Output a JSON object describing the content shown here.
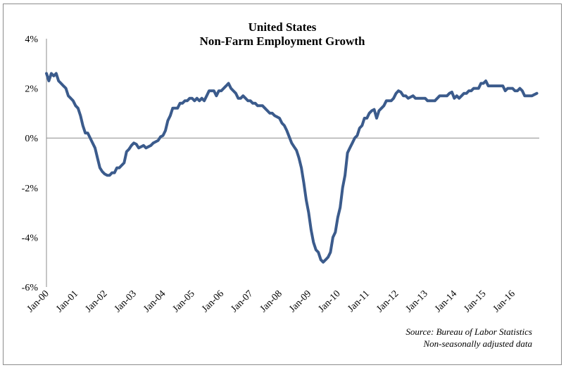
{
  "chart_data": {
    "type": "line",
    "title_lines": [
      "United States",
      "Non-Farm Employment Growth"
    ],
    "xlabel": "",
    "ylabel": "",
    "ylim": [
      -6,
      4
    ],
    "yticks": [
      4,
      2,
      0,
      -2,
      -4,
      -6
    ],
    "ytick_labels": [
      "4%",
      "2%",
      "0%",
      "-2%",
      "-4%",
      "-6%"
    ],
    "xlim": [
      "2000-01",
      "2016-12"
    ],
    "xticks": [
      "2000-01",
      "2001-01",
      "2002-01",
      "2003-01",
      "2004-01",
      "2005-01",
      "2006-01",
      "2007-01",
      "2008-01",
      "2009-01",
      "2010-01",
      "2011-01",
      "2012-01",
      "2013-01",
      "2014-01",
      "2015-01",
      "2016-01"
    ],
    "xtick_labels": [
      "Jan-00",
      "Jan-01",
      "Jan-02",
      "Jan-03",
      "Jan-04",
      "Jan-05",
      "Jan-06",
      "Jan-07",
      "Jan-08",
      "Jan-09",
      "Jan-10",
      "Jan-11",
      "Jan-12",
      "Jan-13",
      "Jan-14",
      "Jan-15",
      "Jan-16"
    ],
    "grid": false,
    "line_color": "#3b5b8c",
    "series": [
      {
        "values": [
          [
            "2000-01",
            2.6
          ],
          [
            "2000-02",
            2.3
          ],
          [
            "2000-03",
            2.6
          ],
          [
            "2000-04",
            2.5
          ],
          [
            "2000-05",
            2.6
          ],
          [
            "2000-06",
            2.3
          ],
          [
            "2000-07",
            2.2
          ],
          [
            "2000-08",
            2.1
          ],
          [
            "2000-09",
            2.0
          ],
          [
            "2000-10",
            1.7
          ],
          [
            "2000-11",
            1.6
          ],
          [
            "2000-12",
            1.5
          ],
          [
            "2001-01",
            1.3
          ],
          [
            "2001-02",
            1.2
          ],
          [
            "2001-03",
            0.9
          ],
          [
            "2001-04",
            0.5
          ],
          [
            "2001-05",
            0.2
          ],
          [
            "2001-06",
            0.2
          ],
          [
            "2001-07",
            0.0
          ],
          [
            "2001-08",
            -0.2
          ],
          [
            "2001-09",
            -0.4
          ],
          [
            "2001-10",
            -0.8
          ],
          [
            "2001-11",
            -1.2
          ],
          [
            "2001-12",
            -1.35
          ],
          [
            "2002-01",
            -1.45
          ],
          [
            "2002-02",
            -1.5
          ],
          [
            "2002-03",
            -1.5
          ],
          [
            "2002-04",
            -1.4
          ],
          [
            "2002-05",
            -1.4
          ],
          [
            "2002-06",
            -1.2
          ],
          [
            "2002-07",
            -1.2
          ],
          [
            "2002-08",
            -1.1
          ],
          [
            "2002-09",
            -1.0
          ],
          [
            "2002-10",
            -0.55
          ],
          [
            "2002-11",
            -0.45
          ],
          [
            "2002-12",
            -0.3
          ],
          [
            "2003-01",
            -0.2
          ],
          [
            "2003-02",
            -0.25
          ],
          [
            "2003-03",
            -0.4
          ],
          [
            "2003-04",
            -0.35
          ],
          [
            "2003-05",
            -0.3
          ],
          [
            "2003-06",
            -0.4
          ],
          [
            "2003-07",
            -0.35
          ],
          [
            "2003-08",
            -0.3
          ],
          [
            "2003-09",
            -0.2
          ],
          [
            "2003-10",
            -0.15
          ],
          [
            "2003-11",
            -0.1
          ],
          [
            "2003-12",
            0.05
          ],
          [
            "2004-01",
            0.1
          ],
          [
            "2004-02",
            0.3
          ],
          [
            "2004-03",
            0.7
          ],
          [
            "2004-04",
            0.9
          ],
          [
            "2004-05",
            1.2
          ],
          [
            "2004-06",
            1.2
          ],
          [
            "2004-07",
            1.2
          ],
          [
            "2004-08",
            1.4
          ],
          [
            "2004-09",
            1.4
          ],
          [
            "2004-10",
            1.5
          ],
          [
            "2004-11",
            1.5
          ],
          [
            "2004-12",
            1.6
          ],
          [
            "2005-01",
            1.6
          ],
          [
            "2005-02",
            1.5
          ],
          [
            "2005-03",
            1.6
          ],
          [
            "2005-04",
            1.5
          ],
          [
            "2005-05",
            1.6
          ],
          [
            "2005-06",
            1.5
          ],
          [
            "2005-07",
            1.7
          ],
          [
            "2005-08",
            1.9
          ],
          [
            "2005-09",
            1.9
          ],
          [
            "2005-10",
            1.9
          ],
          [
            "2005-11",
            1.7
          ],
          [
            "2005-12",
            1.9
          ],
          [
            "2006-01",
            1.9
          ],
          [
            "2006-02",
            2.0
          ],
          [
            "2006-03",
            2.1
          ],
          [
            "2006-04",
            2.2
          ],
          [
            "2006-05",
            2.0
          ],
          [
            "2006-06",
            1.9
          ],
          [
            "2006-07",
            1.8
          ],
          [
            "2006-08",
            1.6
          ],
          [
            "2006-09",
            1.6
          ],
          [
            "2006-10",
            1.7
          ],
          [
            "2006-11",
            1.6
          ],
          [
            "2006-12",
            1.5
          ],
          [
            "2007-01",
            1.5
          ],
          [
            "2007-02",
            1.4
          ],
          [
            "2007-03",
            1.4
          ],
          [
            "2007-04",
            1.3
          ],
          [
            "2007-05",
            1.3
          ],
          [
            "2007-06",
            1.3
          ],
          [
            "2007-07",
            1.2
          ],
          [
            "2007-08",
            1.1
          ],
          [
            "2007-09",
            1.0
          ],
          [
            "2007-10",
            1.0
          ],
          [
            "2007-11",
            0.9
          ],
          [
            "2007-12",
            0.85
          ],
          [
            "2008-01",
            0.8
          ],
          [
            "2008-02",
            0.6
          ],
          [
            "2008-03",
            0.5
          ],
          [
            "2008-04",
            0.3
          ],
          [
            "2008-05",
            0.05
          ],
          [
            "2008-06",
            -0.2
          ],
          [
            "2008-07",
            -0.35
          ],
          [
            "2008-08",
            -0.5
          ],
          [
            "2008-09",
            -0.8
          ],
          [
            "2008-10",
            -1.2
          ],
          [
            "2008-11",
            -1.8
          ],
          [
            "2008-12",
            -2.5
          ],
          [
            "2009-01",
            -3.0
          ],
          [
            "2009-02",
            -3.7
          ],
          [
            "2009-03",
            -4.2
          ],
          [
            "2009-04",
            -4.5
          ],
          [
            "2009-05",
            -4.6
          ],
          [
            "2009-06",
            -4.9
          ],
          [
            "2009-07",
            -5.0
          ],
          [
            "2009-08",
            -4.9
          ],
          [
            "2009-09",
            -4.8
          ],
          [
            "2009-10",
            -4.6
          ],
          [
            "2009-11",
            -4.0
          ],
          [
            "2009-12",
            -3.8
          ],
          [
            "2010-01",
            -3.2
          ],
          [
            "2010-02",
            -2.8
          ],
          [
            "2010-03",
            -2.0
          ],
          [
            "2010-04",
            -1.5
          ],
          [
            "2010-05",
            -0.6
          ],
          [
            "2010-06",
            -0.4
          ],
          [
            "2010-07",
            -0.2
          ],
          [
            "2010-08",
            0.0
          ],
          [
            "2010-09",
            0.1
          ],
          [
            "2010-10",
            0.4
          ],
          [
            "2010-11",
            0.5
          ],
          [
            "2010-12",
            0.8
          ],
          [
            "2011-01",
            0.8
          ],
          [
            "2011-02",
            1.0
          ],
          [
            "2011-03",
            1.1
          ],
          [
            "2011-04",
            1.15
          ],
          [
            "2011-05",
            0.8
          ],
          [
            "2011-06",
            1.1
          ],
          [
            "2011-07",
            1.2
          ],
          [
            "2011-08",
            1.3
          ],
          [
            "2011-09",
            1.5
          ],
          [
            "2011-10",
            1.5
          ],
          [
            "2011-11",
            1.5
          ],
          [
            "2011-12",
            1.6
          ],
          [
            "2012-01",
            1.8
          ],
          [
            "2012-02",
            1.9
          ],
          [
            "2012-03",
            1.85
          ],
          [
            "2012-04",
            1.7
          ],
          [
            "2012-05",
            1.7
          ],
          [
            "2012-06",
            1.6
          ],
          [
            "2012-07",
            1.65
          ],
          [
            "2012-08",
            1.7
          ],
          [
            "2012-09",
            1.6
          ],
          [
            "2012-10",
            1.6
          ],
          [
            "2012-11",
            1.6
          ],
          [
            "2012-12",
            1.6
          ],
          [
            "2013-01",
            1.6
          ],
          [
            "2013-02",
            1.5
          ],
          [
            "2013-03",
            1.5
          ],
          [
            "2013-04",
            1.5
          ],
          [
            "2013-05",
            1.5
          ],
          [
            "2013-06",
            1.6
          ],
          [
            "2013-07",
            1.7
          ],
          [
            "2013-08",
            1.7
          ],
          [
            "2013-09",
            1.7
          ],
          [
            "2013-10",
            1.7
          ],
          [
            "2013-11",
            1.8
          ],
          [
            "2013-12",
            1.85
          ],
          [
            "2014-01",
            1.6
          ],
          [
            "2014-02",
            1.7
          ],
          [
            "2014-03",
            1.6
          ],
          [
            "2014-04",
            1.7
          ],
          [
            "2014-05",
            1.8
          ],
          [
            "2014-06",
            1.8
          ],
          [
            "2014-07",
            1.9
          ],
          [
            "2014-08",
            1.9
          ],
          [
            "2014-09",
            2.0
          ],
          [
            "2014-10",
            2.0
          ],
          [
            "2014-11",
            2.0
          ],
          [
            "2014-12",
            2.2
          ],
          [
            "2015-01",
            2.2
          ],
          [
            "2015-02",
            2.3
          ],
          [
            "2015-03",
            2.1
          ],
          [
            "2015-04",
            2.1
          ],
          [
            "2015-05",
            2.1
          ],
          [
            "2015-06",
            2.1
          ],
          [
            "2015-07",
            2.1
          ],
          [
            "2015-08",
            2.1
          ],
          [
            "2015-09",
            2.1
          ],
          [
            "2015-10",
            1.9
          ],
          [
            "2015-11",
            2.0
          ],
          [
            "2015-12",
            2.0
          ],
          [
            "2016-01",
            2.0
          ],
          [
            "2016-02",
            1.9
          ],
          [
            "2016-03",
            1.9
          ],
          [
            "2016-04",
            2.0
          ],
          [
            "2016-05",
            1.9
          ],
          [
            "2016-06",
            1.7
          ],
          [
            "2016-07",
            1.7
          ],
          [
            "2016-08",
            1.7
          ],
          [
            "2016-09",
            1.7
          ],
          [
            "2016-10",
            1.75
          ],
          [
            "2016-11",
            1.8
          ]
        ]
      }
    ],
    "annotations": [
      "Source: Bureau of Labor Statistics",
      "Non-seasonally adjusted data"
    ]
  }
}
